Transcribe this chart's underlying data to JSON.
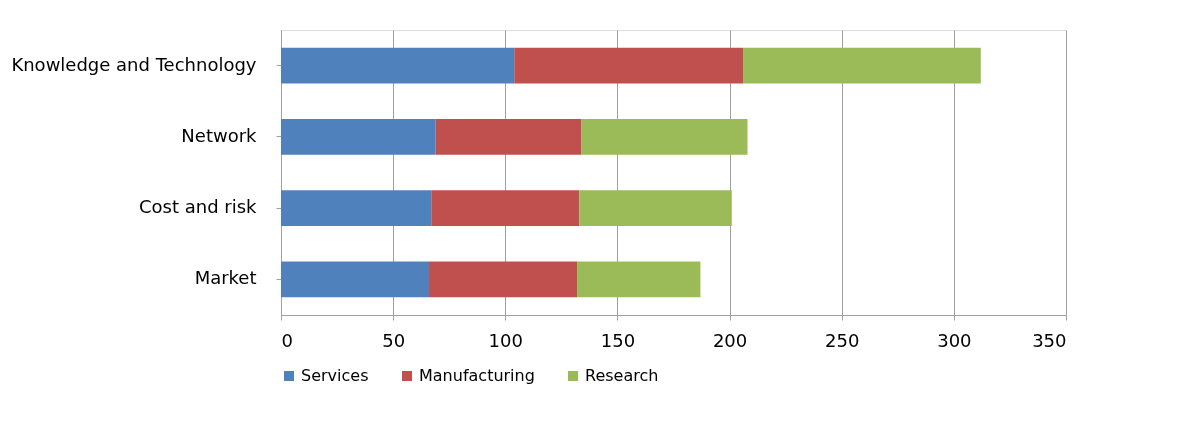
{
  "chart_data": {
    "type": "bar",
    "orientation": "horizontal",
    "stacked": true,
    "categories": [
      "Knowledge and Technology",
      "Network",
      "Cost and risk",
      "Market"
    ],
    "series": [
      {
        "name": "Services",
        "color": "#4f81bd",
        "values": [
          104,
          69,
          67,
          66
        ]
      },
      {
        "name": "Manufacturing",
        "color": "#c0504d",
        "values": [
          102,
          65,
          66,
          66
        ]
      },
      {
        "name": "Research",
        "color": "#9bbb59",
        "values": [
          106,
          74,
          68,
          55
        ]
      }
    ],
    "xlim": [
      0,
      350
    ],
    "xticks": [
      0,
      50,
      100,
      150,
      200,
      250,
      300,
      350
    ],
    "grid": "x",
    "legend": "bottom"
  }
}
